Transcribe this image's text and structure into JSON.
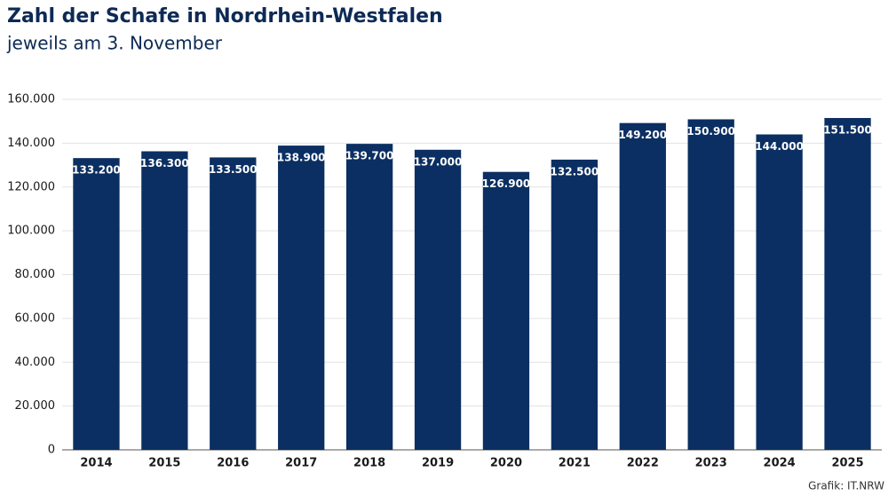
{
  "chart_data": {
    "type": "bar",
    "title": "Zahl der Schafe in Nordrhein-Westfalen",
    "subtitle": "jeweils am 3. November",
    "source": "Grafik: IT.NRW",
    "categories": [
      "2014",
      "2015",
      "2016",
      "2017",
      "2018",
      "2019",
      "2020",
      "2021",
      "2022",
      "2023",
      "2024",
      "2025"
    ],
    "values": [
      133200,
      136300,
      133500,
      138900,
      139700,
      137000,
      126900,
      132500,
      149200,
      150900,
      144000,
      151500
    ],
    "value_labels": [
      "133.200",
      "136.300",
      "133.500",
      "138.900",
      "139.700",
      "137.000",
      "126.900",
      "132.500",
      "149.200",
      "150.900",
      "144.000",
      "151.500"
    ],
    "color": "#0b2f62",
    "ylim": [
      0,
      160000
    ],
    "yticks": [
      0,
      {
        "value": 20000,
        "label": "20.000"
      },
      {
        "value": 40000,
        "label": "40.000"
      },
      {
        "value": 60000,
        "label": "60.000"
      },
      {
        "value": 80000,
        "label": "80.000"
      },
      {
        "value": 100000,
        "label": "100.000"
      },
      {
        "value": 120000,
        "label": "120.000"
      },
      {
        "value": 140000,
        "label": "140.000"
      },
      {
        "value": 160000,
        "label": "160.000"
      }
    ],
    "grid": true
  }
}
